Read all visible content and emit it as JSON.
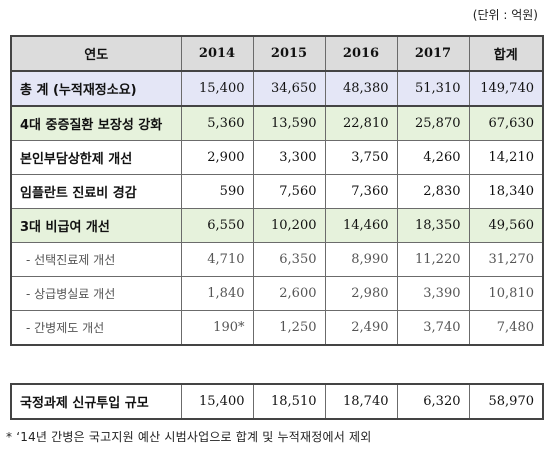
{
  "unit_label": "(단위 : 억원)",
  "headers": [
    "연도",
    "2014",
    "2015",
    "2016",
    "2017",
    "합계"
  ],
  "rows": [
    {
      "label": "총  계 (누적재정소요)",
      "values": [
        "15,400",
        "34,650",
        "48,380",
        "51,310",
        "149,740"
      ]
    },
    {
      "label": "4대 중증질환 보장성 강화",
      "values": [
        "5,360",
        "13,590",
        "22,810",
        "25,870",
        "67,630"
      ]
    },
    {
      "label": "본인부담상한제 개선",
      "values": [
        "2,900",
        "3,300",
        "3,750",
        "4,260",
        "14,210"
      ]
    },
    {
      "label": "임플란트 진료비 경감",
      "values": [
        "590",
        "7,560",
        "7,360",
        "2,830",
        "18,340"
      ]
    },
    {
      "label": "3대 비급여 개선",
      "values": [
        "6,550",
        "10,200",
        "14,460",
        "18,350",
        "49,560"
      ]
    },
    {
      "label": "- 선택진료제 개선",
      "values": [
        "4,710",
        "6,350",
        "8,990",
        "11,220",
        "31,270"
      ]
    },
    {
      "label": "- 상급병실료 개선",
      "values": [
        "1,840",
        "2,600",
        "2,980",
        "3,390",
        "10,810"
      ]
    },
    {
      "label": "- 간병제도 개선",
      "values": [
        "190*",
        "1,250",
        "2,490",
        "3,740",
        "7,480"
      ]
    }
  ],
  "summary": {
    "label": "국정과제 신규투입 규모",
    "values": [
      "15,400",
      "18,510",
      "18,740",
      "6,320",
      "58,970"
    ]
  },
  "footnote": "* ‘14년 간병은 국고지원 예산 시범사업으로 합계 및 누적재정에서 제외",
  "colors": {
    "header_bg": "#dcdcdc",
    "total_bg": "#e4e6f6",
    "group_bg": "#e6f2dc"
  }
}
